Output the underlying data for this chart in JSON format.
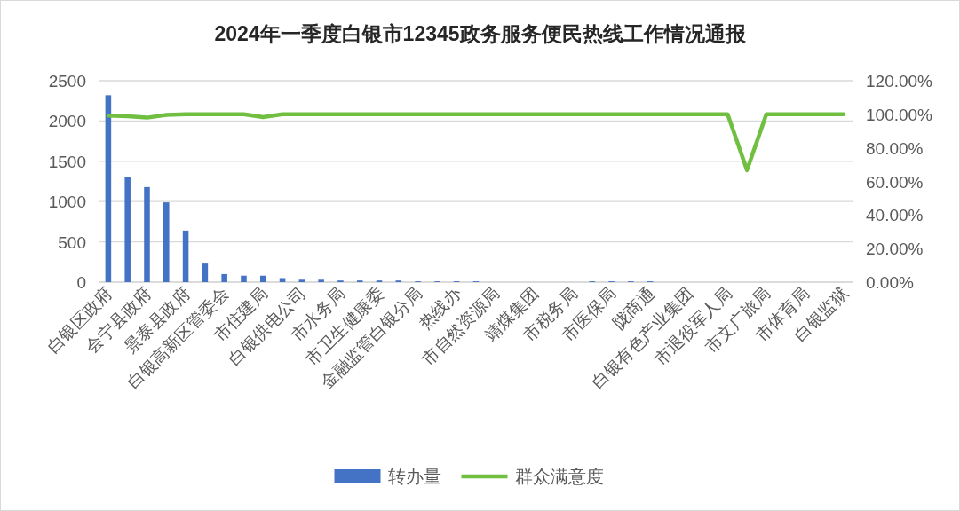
{
  "chart_data": {
    "type": "bar",
    "title": "2024年一季度白银市12345政务服务便民热线工作情况通报",
    "categories": [
      "白银区政府",
      null,
      "会宁县政府",
      null,
      "景泰县政府",
      null,
      "白银高新区管委会",
      null,
      "市住建局",
      null,
      "白银供电公司",
      null,
      "市水务局",
      null,
      "市卫生健康委",
      null,
      "金融监管白银分局",
      null,
      "热线办",
      null,
      "市自然资源局",
      null,
      "靖煤集团",
      null,
      "市税务局",
      null,
      "市医保局",
      null,
      "陇商通",
      null,
      "白银有色产业集团",
      null,
      "市退役军人局",
      null,
      "市文广旅局",
      null,
      "市体育局",
      null,
      "白银监狱"
    ],
    "series": [
      {
        "name": "转办量",
        "color": "#4472c4",
        "values": [
          2320,
          1310,
          1180,
          990,
          640,
          230,
          100,
          80,
          80,
          50,
          30,
          30,
          20,
          20,
          20,
          20,
          10,
          10,
          10,
          10,
          0,
          0,
          0,
          0,
          0,
          10,
          10,
          10,
          10,
          0,
          0,
          0,
          0,
          0,
          0,
          0,
          0,
          0,
          0
        ]
      },
      {
        "name": "群众满意度",
        "type": "line",
        "axis": "y2",
        "color": "#70bf41",
        "values": [
          99.3,
          98.8,
          98,
          99.6,
          100,
          100,
          100,
          100,
          98.3,
          100,
          100,
          100,
          100,
          100,
          100,
          100,
          100,
          100,
          100,
          100,
          100,
          100,
          100,
          100,
          100,
          100,
          100,
          100,
          100,
          100,
          100,
          100,
          100,
          66.7,
          100,
          100,
          100,
          100,
          100
        ]
      }
    ],
    "ylim": [
      0,
      2500
    ],
    "yticks": [
      0,
      500,
      1000,
      1500,
      2000,
      2500
    ],
    "y2lim": [
      0,
      120
    ],
    "y2ticks": [
      {
        "value": 0,
        "label": "0.00%"
      },
      {
        "value": 20,
        "label": "20.00%"
      },
      {
        "value": 40,
        "label": "40.00%"
      },
      {
        "value": 60,
        "label": "60.00%"
      },
      {
        "value": 80,
        "label": "80.00%"
      },
      {
        "value": 100,
        "label": "100.00%"
      },
      {
        "value": 120,
        "label": "120.00%"
      }
    ],
    "grid": "y",
    "legend": "bottom"
  }
}
